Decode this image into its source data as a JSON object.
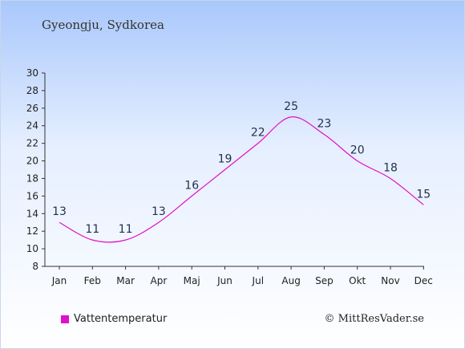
{
  "location": "Gyeongju, Sydkorea",
  "credit": "© MittResVader.se",
  "chart_data": {
    "type": "line",
    "categories": [
      "Jan",
      "Feb",
      "Mar",
      "Apr",
      "Maj",
      "Jun",
      "Jul",
      "Aug",
      "Sep",
      "Okt",
      "Nov",
      "Dec"
    ],
    "series": [
      {
        "name": "Vattentemperatur",
        "values": [
          13,
          11,
          11,
          13,
          16,
          19,
          22,
          25,
          23,
          20,
          18,
          15
        ],
        "color": "#e010c8"
      }
    ],
    "ylim": [
      8,
      30
    ],
    "yticks": [
      8,
      10,
      12,
      14,
      16,
      18,
      20,
      22,
      24,
      26,
      28,
      30
    ],
    "legend": "bottom-left",
    "grid": false,
    "smooth": true
  }
}
